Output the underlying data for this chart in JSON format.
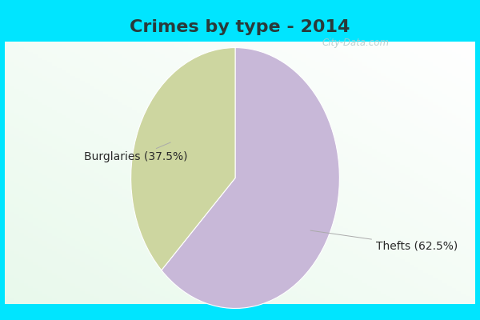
{
  "title": "Crimes by type - 2014",
  "slices": [
    {
      "label": "Thefts",
      "pct": 62.5,
      "color": "#C8B8D8"
    },
    {
      "label": "Burglaries",
      "pct": 37.5,
      "color": "#CDD6A0"
    }
  ],
  "bg_color_cyan": "#00E5FF",
  "bg_color_main_top": "#C8EDE0",
  "bg_color_main_bottom": "#E8F5E8",
  "watermark": "City-Data.com",
  "title_fontsize": 16,
  "label_fontsize": 10,
  "startangle": 90,
  "title_color": "#2a3a3a"
}
